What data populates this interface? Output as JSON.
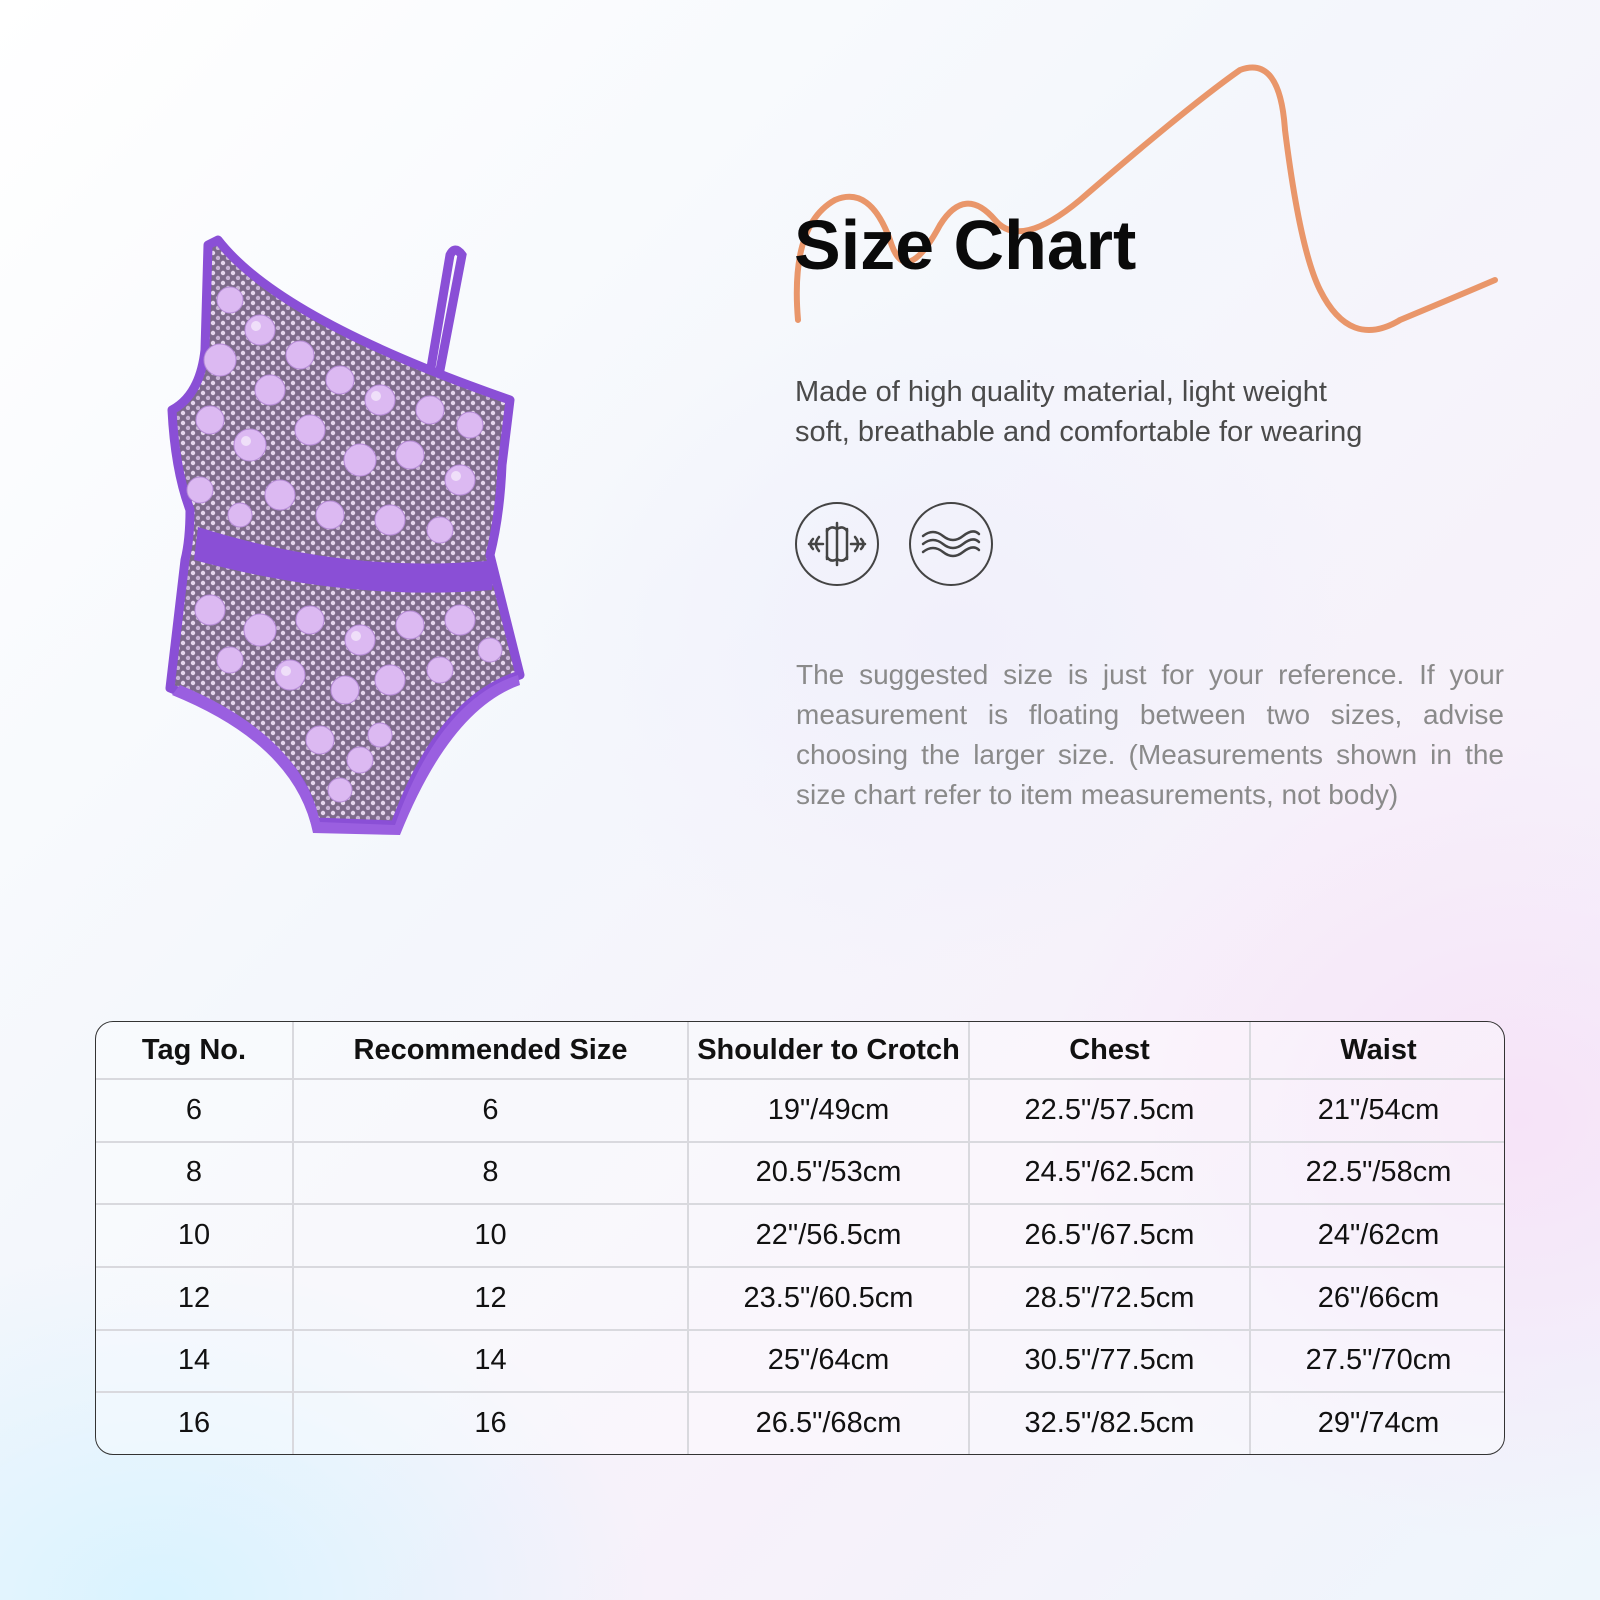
{
  "header": {
    "title": "Size Chart",
    "description_line1": "Made of high quality material, light weight",
    "description_line2": "soft, breathable and comfortable for wearing"
  },
  "icons": [
    "stretch-icon",
    "breathable-icon"
  ],
  "note": "The suggested size is just for your reference. If your measurement is floating between two sizes, advise choosing the larger size. (Measurements shown in the size chart refer to item measurements, not body)",
  "colors": {
    "accent_squiggle": "#e9966a",
    "garment_purple": "#8a4fd6",
    "sequin_lilac": "#d9b6f0"
  },
  "size_table": {
    "columns": [
      "Tag No.",
      "Recommended Size",
      "Shoulder to Crotch",
      "Chest",
      "Waist"
    ],
    "rows": [
      [
        "6",
        "6",
        "19\"/49cm",
        "22.5\"/57.5cm",
        "21\"/54cm"
      ],
      [
        "8",
        "8",
        "20.5\"/53cm",
        "24.5\"/62.5cm",
        "22.5\"/58cm"
      ],
      [
        "10",
        "10",
        "22\"/56.5cm",
        "26.5\"/67.5cm",
        "24\"/62cm"
      ],
      [
        "12",
        "12",
        "23.5\"/60.5cm",
        "28.5\"/72.5cm",
        "26\"/66cm"
      ],
      [
        "14",
        "14",
        "25\"/64cm",
        "30.5\"/77.5cm",
        "27.5\"/70cm"
      ],
      [
        "16",
        "16",
        "26.5\"/68cm",
        "32.5\"/82.5cm",
        "29\"/74cm"
      ]
    ]
  }
}
